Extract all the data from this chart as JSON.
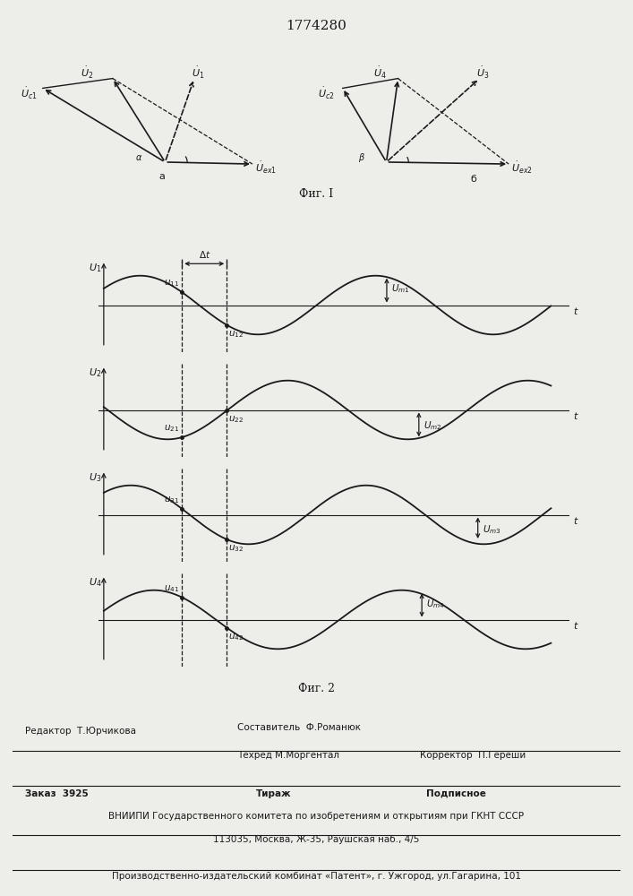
{
  "patent_number": "1774280",
  "fig1_label": "Фиг. I",
  "fig2_label": "Фиг. 2",
  "background_color": "#ededea",
  "line_color": "#1a1a1a",
  "footer_editor": "Редактор  Т.Юрчикова",
  "footer_compiler1": "Составитель  Ф.Романюк",
  "footer_techred": "Техред М.Моргентал",
  "footer_corrector": "Корректор  П.Гереши",
  "footer_order": "Заказ  3925",
  "footer_tirazh": "Тираж",
  "footer_podpisnoe": "Подписное",
  "footer_vniipи": "ВНИИПИ Государственного комитета по изобретениям и открытиям при ГКНТ СССР",
  "footer_address": "113035, Москва, Ж-35, Раушская наб., 4/5",
  "footer_publisher": "Производственно-издательский комбинат «Патент», г. Ужгород, ул.Гагарина, 101"
}
